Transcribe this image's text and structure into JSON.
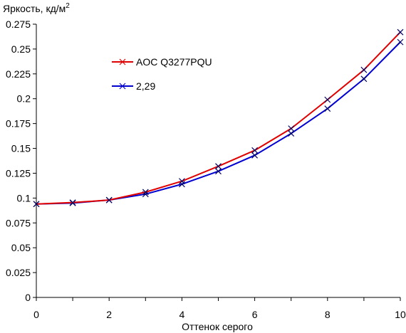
{
  "chart_data": {
    "type": "line",
    "ylabel": "Яркость, кд/м",
    "ylabel_sup": "2",
    "xlabel": "Оттенок серого",
    "xlim": [
      0,
      10
    ],
    "ylim": [
      0,
      0.275
    ],
    "x_ticks": [
      "0",
      "2",
      "4",
      "6",
      "8",
      "10"
    ],
    "y_ticks": [
      "0",
      "0.025",
      "0.05",
      "0.075",
      "0.1",
      "0.125",
      "0.15",
      "0.175",
      "0.2",
      "0.225",
      "0.25",
      "0.275"
    ],
    "grid": false,
    "legend_position": "top-left-inside",
    "x": [
      0,
      1,
      2,
      3,
      4,
      5,
      6,
      7,
      8,
      9,
      10
    ],
    "series": [
      {
        "name": "AOC Q3277PQU",
        "color": "#e00000",
        "marker": "x",
        "values": [
          0.094,
          0.0955,
          0.098,
          0.106,
          0.117,
          0.132,
          0.148,
          0.17,
          0.199,
          0.229,
          0.267
        ]
      },
      {
        "name": "2,29",
        "color": "#0000d0",
        "marker": "x",
        "values": [
          0.094,
          0.095,
          0.098,
          0.104,
          0.114,
          0.127,
          0.143,
          0.165,
          0.19,
          0.22,
          0.257
        ]
      }
    ]
  }
}
